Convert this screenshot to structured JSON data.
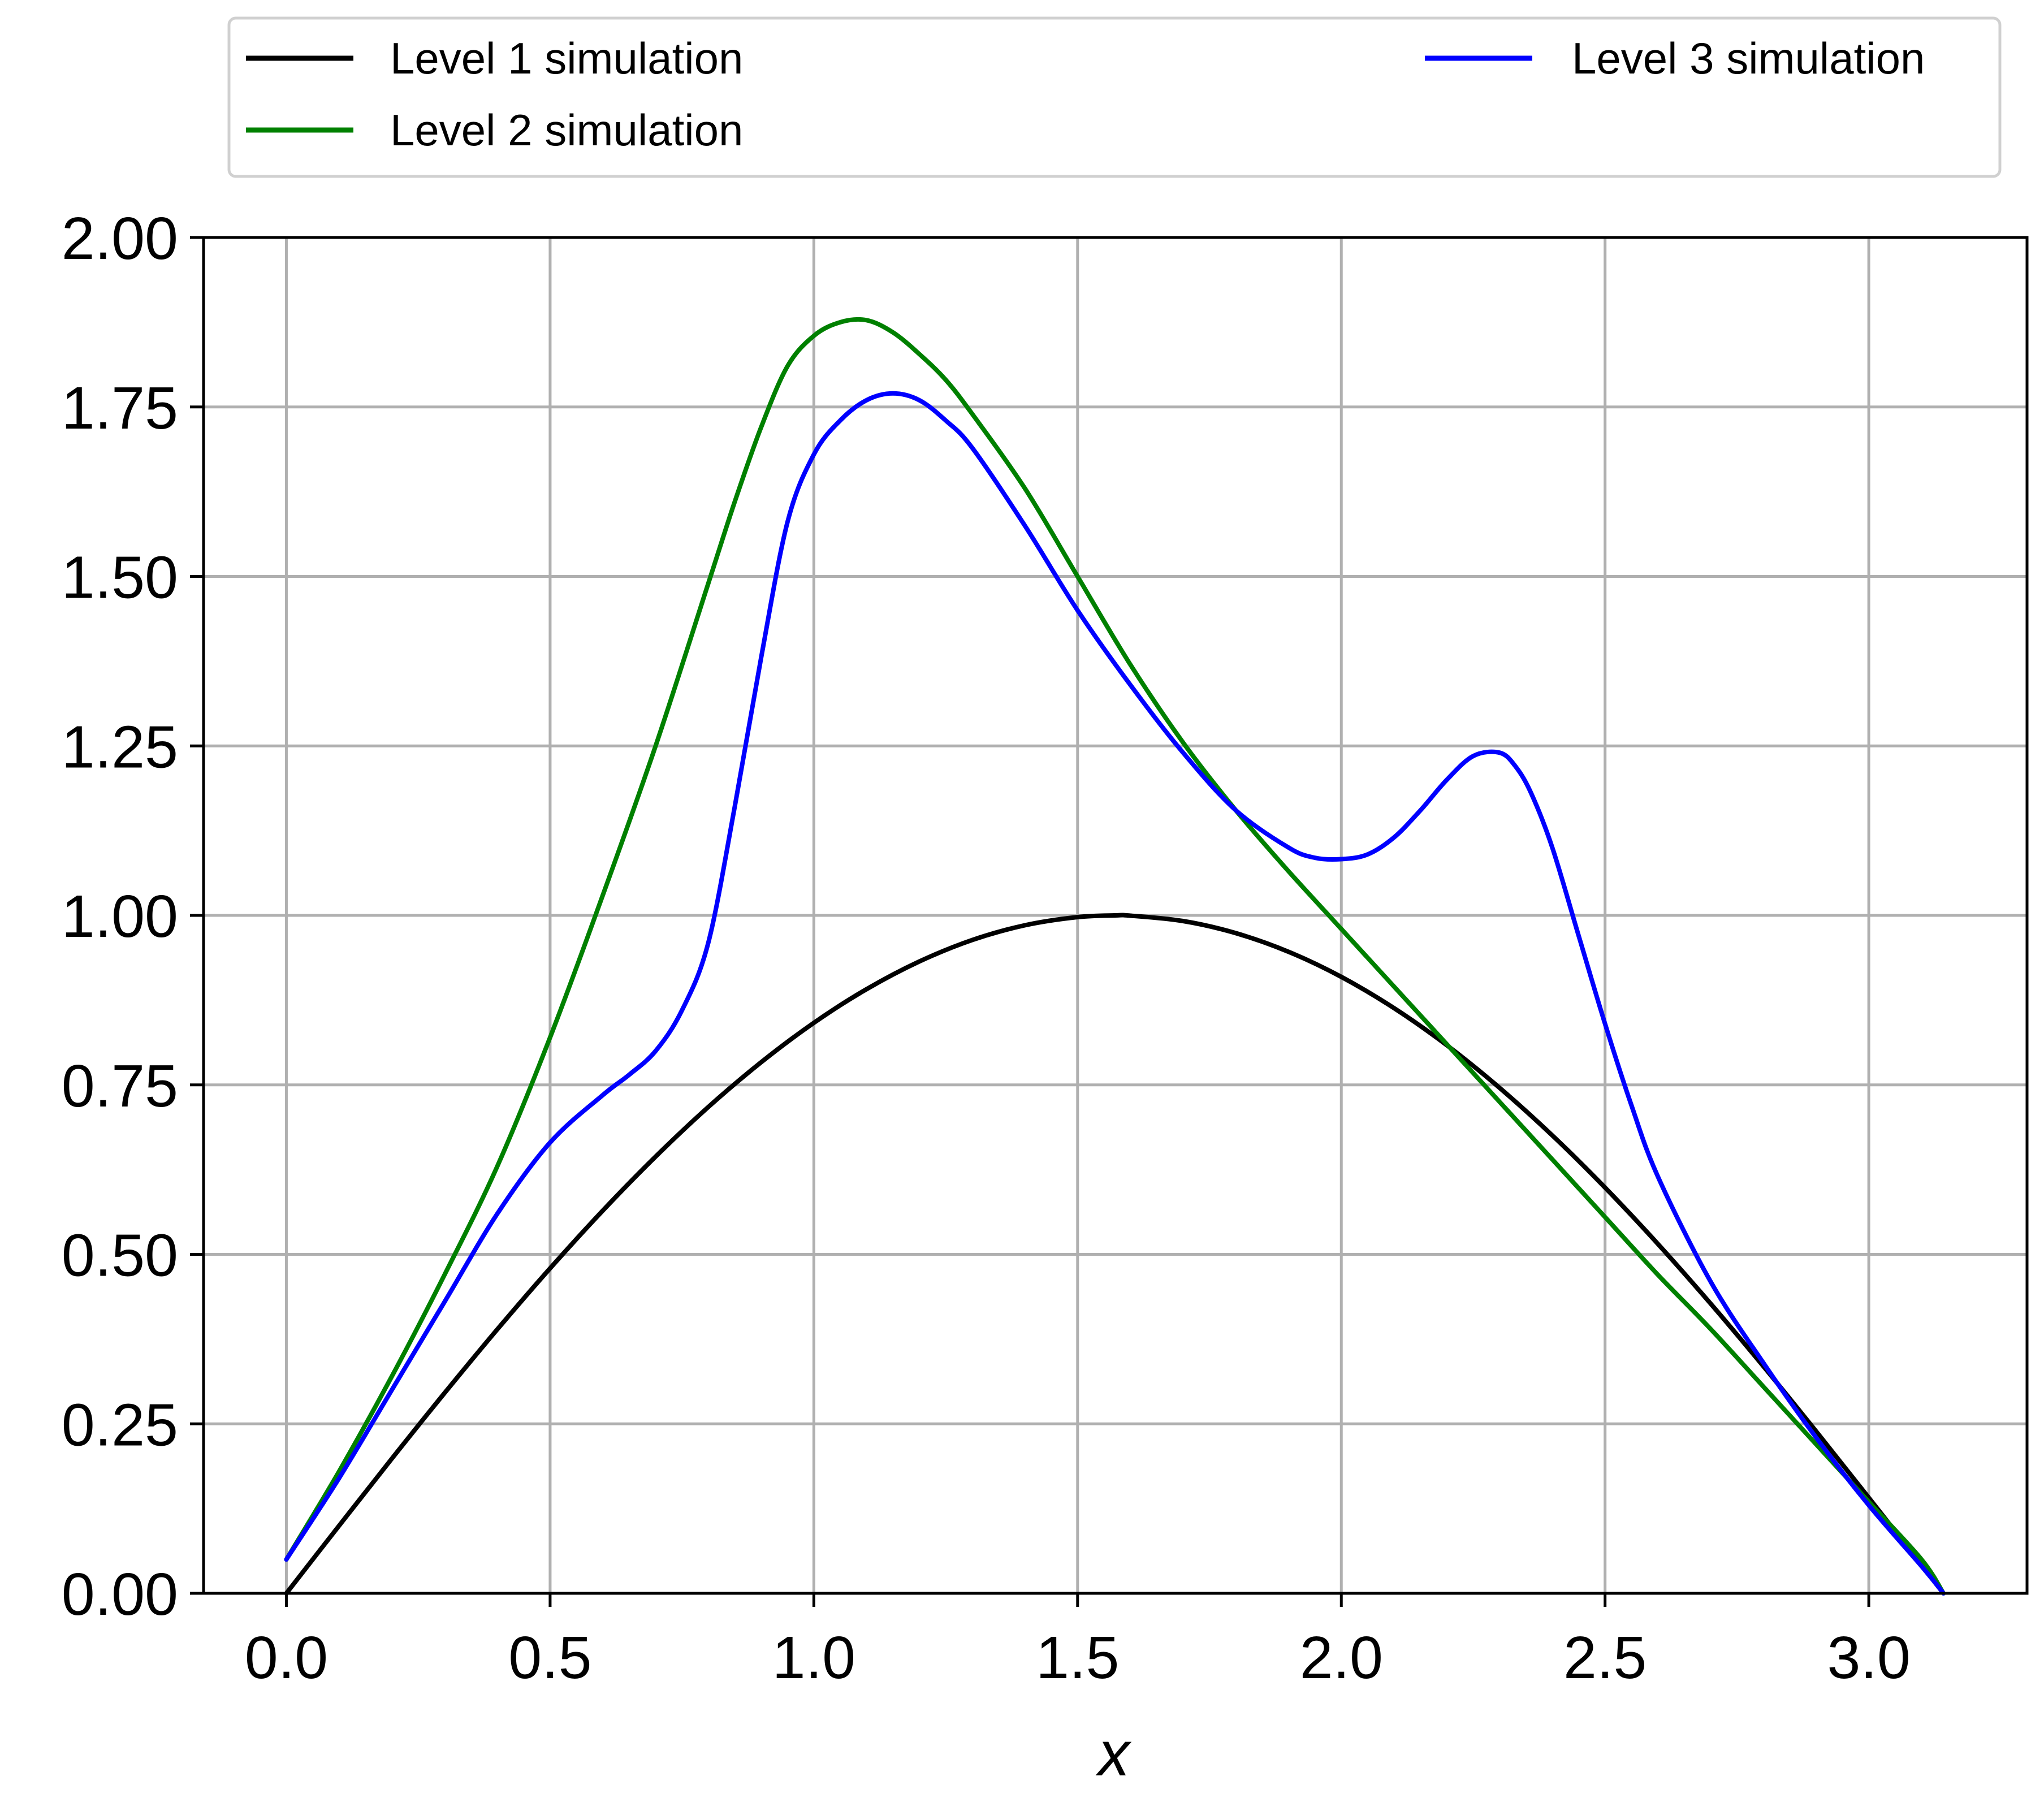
{
  "chart_data": {
    "type": "line",
    "title": "",
    "xlabel": "x",
    "ylabel": "",
    "xlim": [
      -0.157,
      3.3
    ],
    "ylim": [
      0,
      2.0
    ],
    "grid": true,
    "legend_position": "top, above plot (2 columns)",
    "x_ticks": [
      0.0,
      0.5,
      1.0,
      1.5,
      2.0,
      2.5,
      3.0
    ],
    "x_tick_labels": [
      "0.0",
      "0.5",
      "1.0",
      "1.5",
      "2.0",
      "2.5",
      "3.0"
    ],
    "y_ticks": [
      0.0,
      0.25,
      0.5,
      0.75,
      1.0,
      1.25,
      1.5,
      1.75,
      2.0
    ],
    "y_tick_labels": [
      "0.00",
      "0.25",
      "0.50",
      "0.75",
      "1.00",
      "1.25",
      "1.50",
      "1.75",
      "2.00"
    ],
    "series": [
      {
        "name": "Level 1 simulation",
        "color": "#000000",
        "x": [
          0.0,
          0.1,
          0.2,
          0.3,
          0.4,
          0.5,
          0.6,
          0.7,
          0.8,
          0.9,
          1.0,
          1.1,
          1.2,
          1.3,
          1.4,
          1.5,
          1.571,
          1.6,
          1.7,
          1.8,
          1.9,
          2.0,
          2.1,
          2.2,
          2.3,
          2.4,
          2.5,
          2.6,
          2.7,
          2.8,
          2.9,
          3.0,
          3.1,
          3.1416
        ],
        "y": [
          0.0,
          0.0998,
          0.1987,
          0.2955,
          0.3894,
          0.4794,
          0.5646,
          0.6442,
          0.7174,
          0.7833,
          0.8415,
          0.8912,
          0.932,
          0.9636,
          0.9854,
          0.9975,
          1.0,
          0.9996,
          0.9917,
          0.9738,
          0.9463,
          0.9093,
          0.8632,
          0.8085,
          0.7457,
          0.6755,
          0.5985,
          0.5155,
          0.4274,
          0.335,
          0.2392,
          0.1411,
          0.0416,
          0.0
        ]
      },
      {
        "name": "Level 2 simulation",
        "color": "#008000",
        "x": [
          0.0,
          0.1,
          0.2,
          0.3,
          0.4,
          0.5,
          0.6,
          0.7,
          0.8,
          0.85,
          0.9,
          0.95,
          1.0,
          1.05,
          1.1,
          1.15,
          1.2,
          1.25,
          1.3,
          1.4,
          1.5,
          1.6,
          1.7,
          1.8,
          1.9,
          2.0,
          2.1,
          2.2,
          2.3,
          2.4,
          2.5,
          2.6,
          2.7,
          2.8,
          2.9,
          3.0,
          3.1,
          3.1416
        ],
        "y": [
          0.05,
          0.18,
          0.32,
          0.47,
          0.63,
          0.82,
          1.03,
          1.25,
          1.49,
          1.61,
          1.72,
          1.81,
          1.855,
          1.875,
          1.878,
          1.86,
          1.828,
          1.79,
          1.74,
          1.63,
          1.5,
          1.37,
          1.255,
          1.155,
          1.065,
          0.98,
          0.895,
          0.81,
          0.725,
          0.64,
          0.555,
          0.47,
          0.39,
          0.305,
          0.22,
          0.135,
          0.05,
          0.0
        ]
      },
      {
        "name": "Level 3 simulation",
        "color": "#0000ff",
        "x": [
          0.0,
          0.1,
          0.2,
          0.3,
          0.4,
          0.5,
          0.6,
          0.65,
          0.7,
          0.75,
          0.8,
          0.85,
          0.9,
          0.95,
          1.0,
          1.05,
          1.1,
          1.15,
          1.2,
          1.25,
          1.3,
          1.4,
          1.5,
          1.6,
          1.7,
          1.8,
          1.9,
          1.95,
          2.0,
          2.05,
          2.1,
          2.15,
          2.2,
          2.25,
          2.3,
          2.33,
          2.36,
          2.4,
          2.45,
          2.5,
          2.55,
          2.6,
          2.7,
          2.8,
          2.9,
          3.0,
          3.1,
          3.1416
        ],
        "y": [
          0.05,
          0.17,
          0.3,
          0.43,
          0.56,
          0.665,
          0.735,
          0.765,
          0.8,
          0.86,
          0.96,
          1.16,
          1.38,
          1.58,
          1.68,
          1.73,
          1.76,
          1.77,
          1.76,
          1.73,
          1.69,
          1.575,
          1.45,
          1.34,
          1.24,
          1.155,
          1.1,
          1.085,
          1.083,
          1.09,
          1.115,
          1.155,
          1.2,
          1.235,
          1.24,
          1.22,
          1.18,
          1.1,
          0.97,
          0.84,
          0.72,
          0.615,
          0.46,
          0.34,
          0.23,
          0.13,
          0.04,
          0.0
        ]
      }
    ]
  }
}
